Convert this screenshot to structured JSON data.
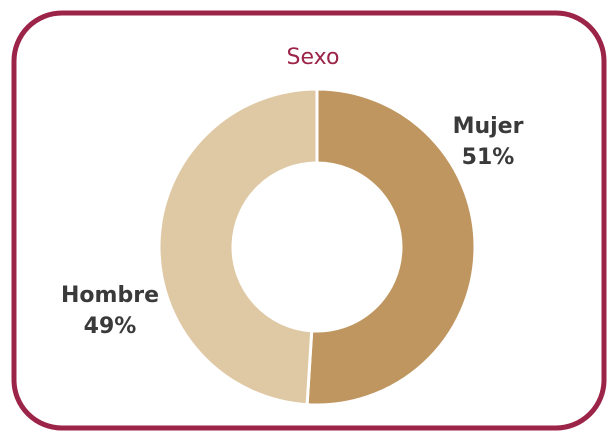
{
  "chart_data": {
    "type": "donut",
    "title": "Sexo",
    "categories": [
      "Mujer",
      "Hombre"
    ],
    "values": [
      51,
      49
    ],
    "value_labels": [
      "51%",
      "49%"
    ],
    "colors": [
      "#bf9660",
      "#dfc9a5"
    ]
  }
}
